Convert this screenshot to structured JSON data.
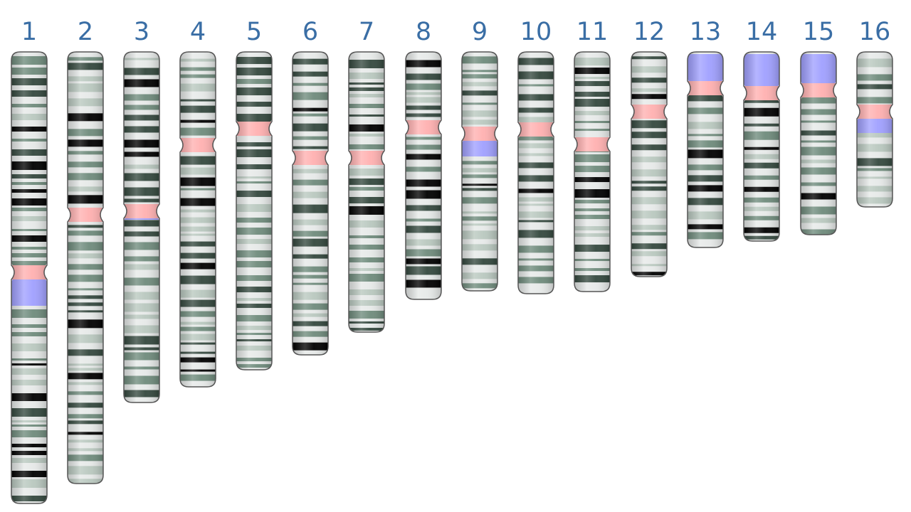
{
  "chromosomes": [
    {
      "label": "1"
    },
    {
      "label": "2"
    },
    {
      "label": "3"
    },
    {
      "label": "4"
    },
    {
      "label": "5"
    },
    {
      "label": "6"
    },
    {
      "label": "7"
    },
    {
      "label": "8"
    },
    {
      "label": "9"
    },
    {
      "label": "10"
    },
    {
      "label": "11"
    },
    {
      "label": "12"
    },
    {
      "label": "13"
    },
    {
      "label": "14"
    },
    {
      "label": "15"
    },
    {
      "label": "16"
    }
  ],
  "colors": {
    "label": "#3a6ea5",
    "band_light": "#e6e9e8",
    "band_pale": "#b9c8bf",
    "band_mid": "#6f8b7c",
    "band_dark": "#34483e",
    "band_black": "#000000",
    "centromere": "#ffb0b0",
    "heterochromatin": "#a0a0ff",
    "outline": "#555555"
  }
}
